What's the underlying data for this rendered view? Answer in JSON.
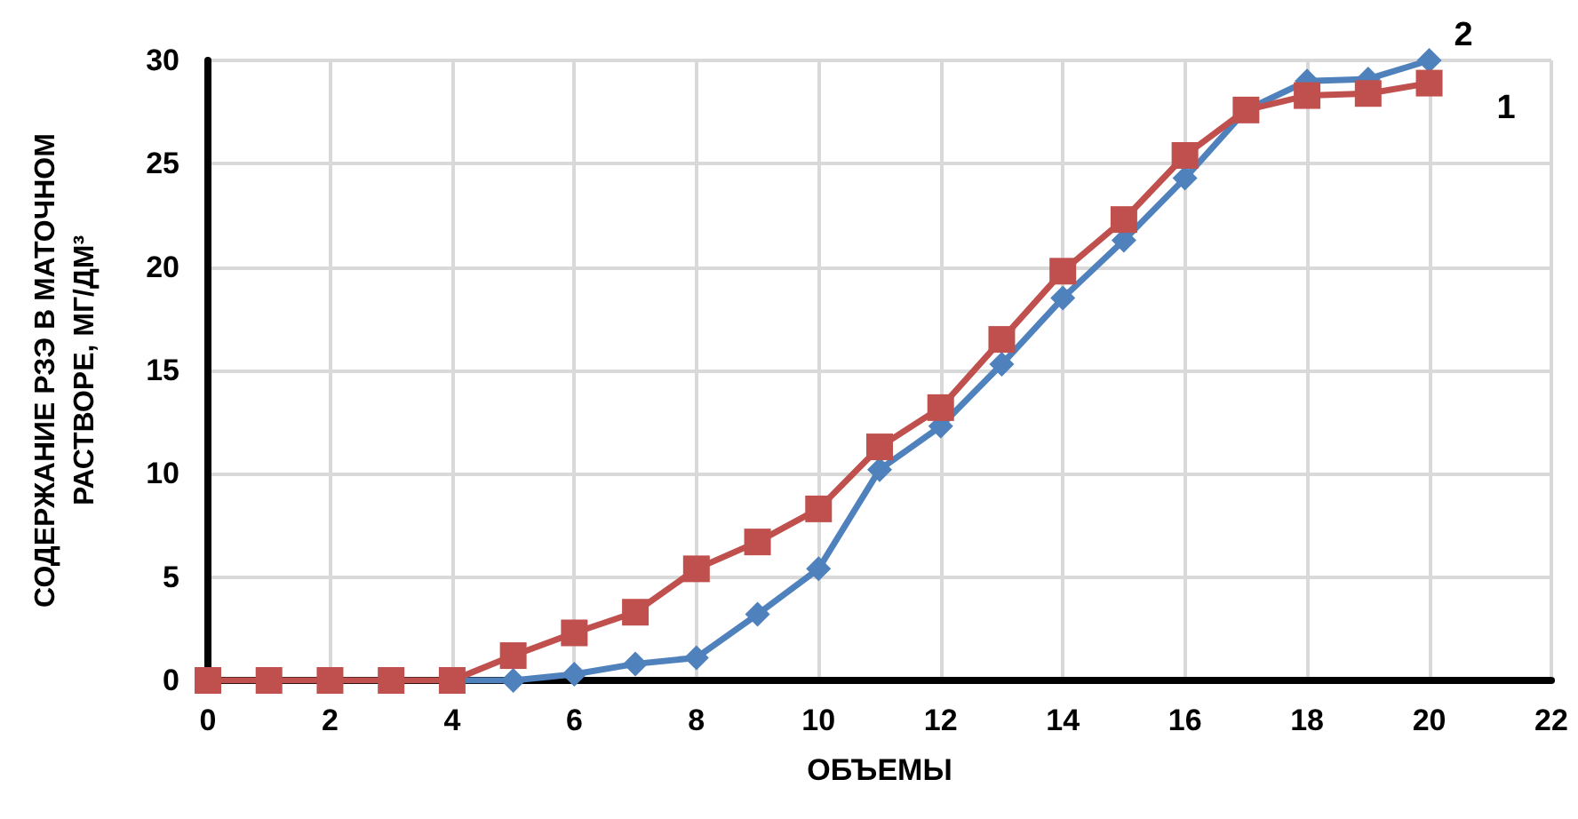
{
  "chart_data": {
    "type": "line",
    "xlabel": "ОБЪЕМЫ",
    "ylabel": "СОДЕРЖАНИЕ РЗЭ В МАТОЧНОМ\nРАСТВОРЕ, МГ/ДМ³",
    "x": [
      0,
      1,
      2,
      3,
      4,
      5,
      6,
      7,
      8,
      9,
      10,
      11,
      12,
      13,
      14,
      15,
      16,
      17,
      18,
      19,
      20
    ],
    "series": [
      {
        "name": "2",
        "color": "#4f81bd",
        "marker": "diamond",
        "values": [
          null,
          null,
          null,
          null,
          0,
          0,
          0.3,
          0.8,
          1.1,
          3.2,
          5.4,
          10.2,
          12.3,
          15.3,
          18.5,
          21.3,
          24.3,
          27.6,
          29.0,
          29.1,
          30
        ]
      },
      {
        "name": "1",
        "color": "#c0504d",
        "marker": "square",
        "values": [
          0,
          0,
          0,
          0,
          0,
          1.2,
          2.3,
          3.3,
          5.4,
          6.7,
          8.3,
          11.3,
          13.2,
          16.5,
          19.8,
          22.3,
          25.4,
          27.6,
          28.3,
          28.4,
          28.9
        ]
      }
    ],
    "xlim": [
      0,
      22
    ],
    "xticks": [
      0,
      2,
      4,
      6,
      8,
      10,
      12,
      14,
      16,
      18,
      20,
      22
    ],
    "ylim": [
      0,
      30
    ],
    "yticks": [
      0,
      5,
      10,
      15,
      20,
      25,
      30
    ],
    "grid": true,
    "legend": false,
    "line_style": "solid"
  }
}
